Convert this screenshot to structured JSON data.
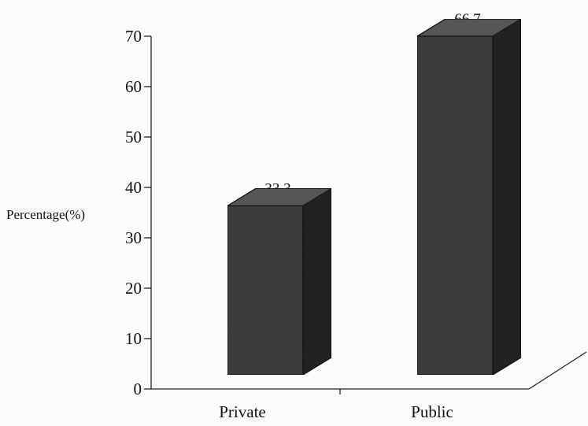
{
  "chart_data": {
    "type": "bar",
    "style": "3d",
    "title": "",
    "xlabel": "",
    "ylabel": "Percentage(%)",
    "categories": [
      "Private",
      "Public"
    ],
    "values": [
      33.3,
      66.7
    ],
    "data_labels": [
      "33.3",
      "66.7"
    ],
    "ylim": [
      0,
      70
    ],
    "yticks": [
      "0",
      "10",
      "20",
      "30",
      "40",
      "50",
      "60",
      "70"
    ],
    "grid": false,
    "legend": "none",
    "colors": {
      "bar_front": "#3e3e3e",
      "bar_top": "#5a5a5a",
      "bar_side": "#242424",
      "axis": "#222222"
    }
  }
}
